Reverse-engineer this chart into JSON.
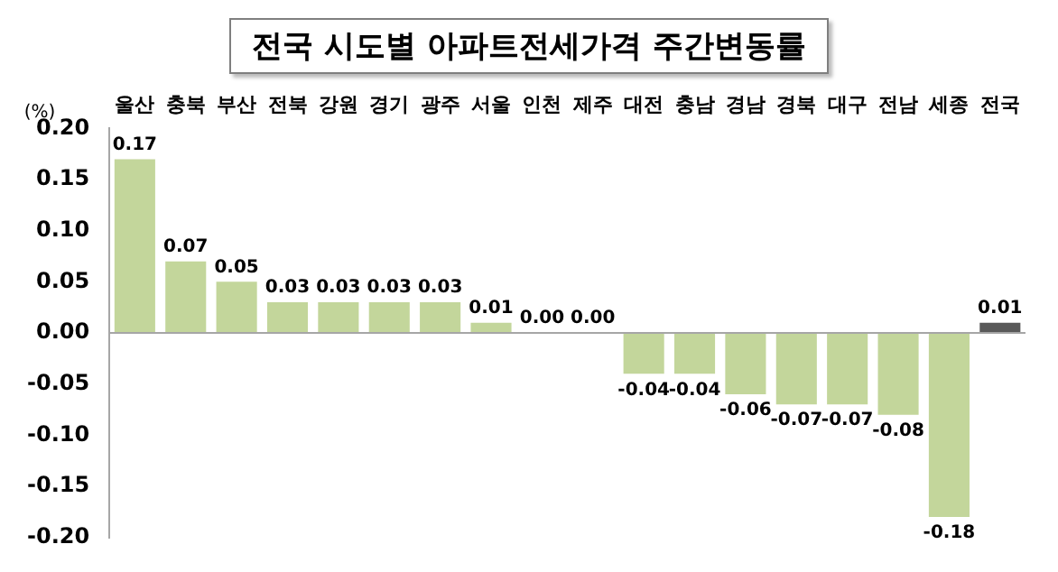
{
  "chart_data": {
    "type": "bar",
    "title": "전국 시도별 아파트전세가격 주간변동률",
    "ylabel": "(%)",
    "categories": [
      "울산",
      "충북",
      "부산",
      "전북",
      "강원",
      "경기",
      "광주",
      "서울",
      "인천",
      "제주",
      "대전",
      "충남",
      "경남",
      "경북",
      "대구",
      "전남",
      "세종",
      "전국"
    ],
    "values": [
      0.17,
      0.07,
      0.05,
      0.03,
      0.03,
      0.03,
      0.03,
      0.01,
      0.0,
      0.0,
      -0.04,
      -0.04,
      -0.06,
      -0.07,
      -0.07,
      -0.08,
      -0.18,
      0.01
    ],
    "colors": [
      "#c3d69b",
      "#c3d69b",
      "#c3d69b",
      "#c3d69b",
      "#c3d69b",
      "#c3d69b",
      "#c3d69b",
      "#c3d69b",
      "#c3d69b",
      "#c3d69b",
      "#c3d69b",
      "#c3d69b",
      "#c3d69b",
      "#c3d69b",
      "#c3d69b",
      "#c3d69b",
      "#c3d69b",
      "#595959"
    ],
    "ylim": [
      -0.2,
      0.2
    ],
    "yticks": [
      {
        "value": -0.2,
        "label": "-0.20"
      },
      {
        "value": -0.15,
        "label": "-0.15"
      },
      {
        "value": -0.1,
        "label": "-0.10"
      },
      {
        "value": -0.05,
        "label": "-0.05"
      },
      {
        "value": 0,
        "label": "0.00"
      },
      {
        "value": 0.05,
        "label": "0.05"
      },
      {
        "value": 0.1,
        "label": "0.10"
      },
      {
        "value": 0.15,
        "label": "0.15"
      },
      {
        "value": 0.2,
        "label": "0.20"
      }
    ],
    "ref_lines": [
      {
        "axis": "y",
        "value": 0,
        "color": "#a6a6a6"
      }
    ],
    "value_labels": [
      "0.17",
      "0.07",
      "0.05",
      "0.03",
      "0.03",
      "0.03",
      "0.03",
      "0.01",
      "0.00",
      "0.00",
      "-0.04",
      "-0.04",
      "-0.06",
      "-0.07",
      "-0.07",
      "-0.08",
      "-0.18",
      "0.01"
    ],
    "grid": false,
    "legend": false
  }
}
